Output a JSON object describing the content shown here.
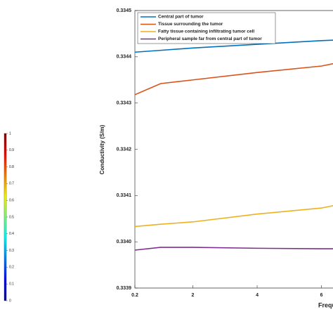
{
  "chart_data": [
    {
      "type": "colorbar",
      "colormap": "jet",
      "ylim": [
        0,
        1
      ],
      "yticks": [
        0,
        0.1,
        0.2,
        0.3,
        0.4,
        0.5,
        0.6,
        0.7,
        0.8,
        0.9,
        1
      ]
    },
    {
      "type": "line",
      "x_label": "Frequ",
      "y_label": "Conductivity (S/m)",
      "x": [
        0.2,
        1,
        2,
        4,
        6,
        6.36
      ],
      "series": [
        {
          "name": "Central part of tumor",
          "color": "#0072bd",
          "values": [
            0.33441,
            0.334414,
            0.334419,
            0.334427,
            0.334435,
            0.334436
          ]
        },
        {
          "name": "Tissue surrounding the tumor",
          "color": "#d95319",
          "values": [
            0.334318,
            0.334342,
            0.33435,
            0.334366,
            0.33438,
            0.334385
          ]
        },
        {
          "name": "Fatty tissue containing infiltrating tumor cell",
          "color": "#edb120",
          "values": [
            0.334033,
            0.334038,
            0.334043,
            0.33406,
            0.334073,
            0.334078
          ]
        },
        {
          "name": "Peripheral sample far from central part of tumor",
          "color": "#7e2f8e",
          "values": [
            0.333982,
            0.333988,
            0.333988,
            0.333986,
            0.333985,
            0.333985
          ]
        }
      ],
      "xlim": [
        0.2,
        12
      ],
      "ylim": [
        0.3339,
        0.3345
      ],
      "xticks": [
        0.2,
        2,
        4,
        6
      ],
      "yticks": [
        0.3339,
        {
          "value": 0.334,
          "label": "0.3340"
        },
        0.3341,
        0.3342,
        0.3343,
        0.3344,
        0.3345
      ],
      "grid": false,
      "legend": "upper-left"
    }
  ]
}
